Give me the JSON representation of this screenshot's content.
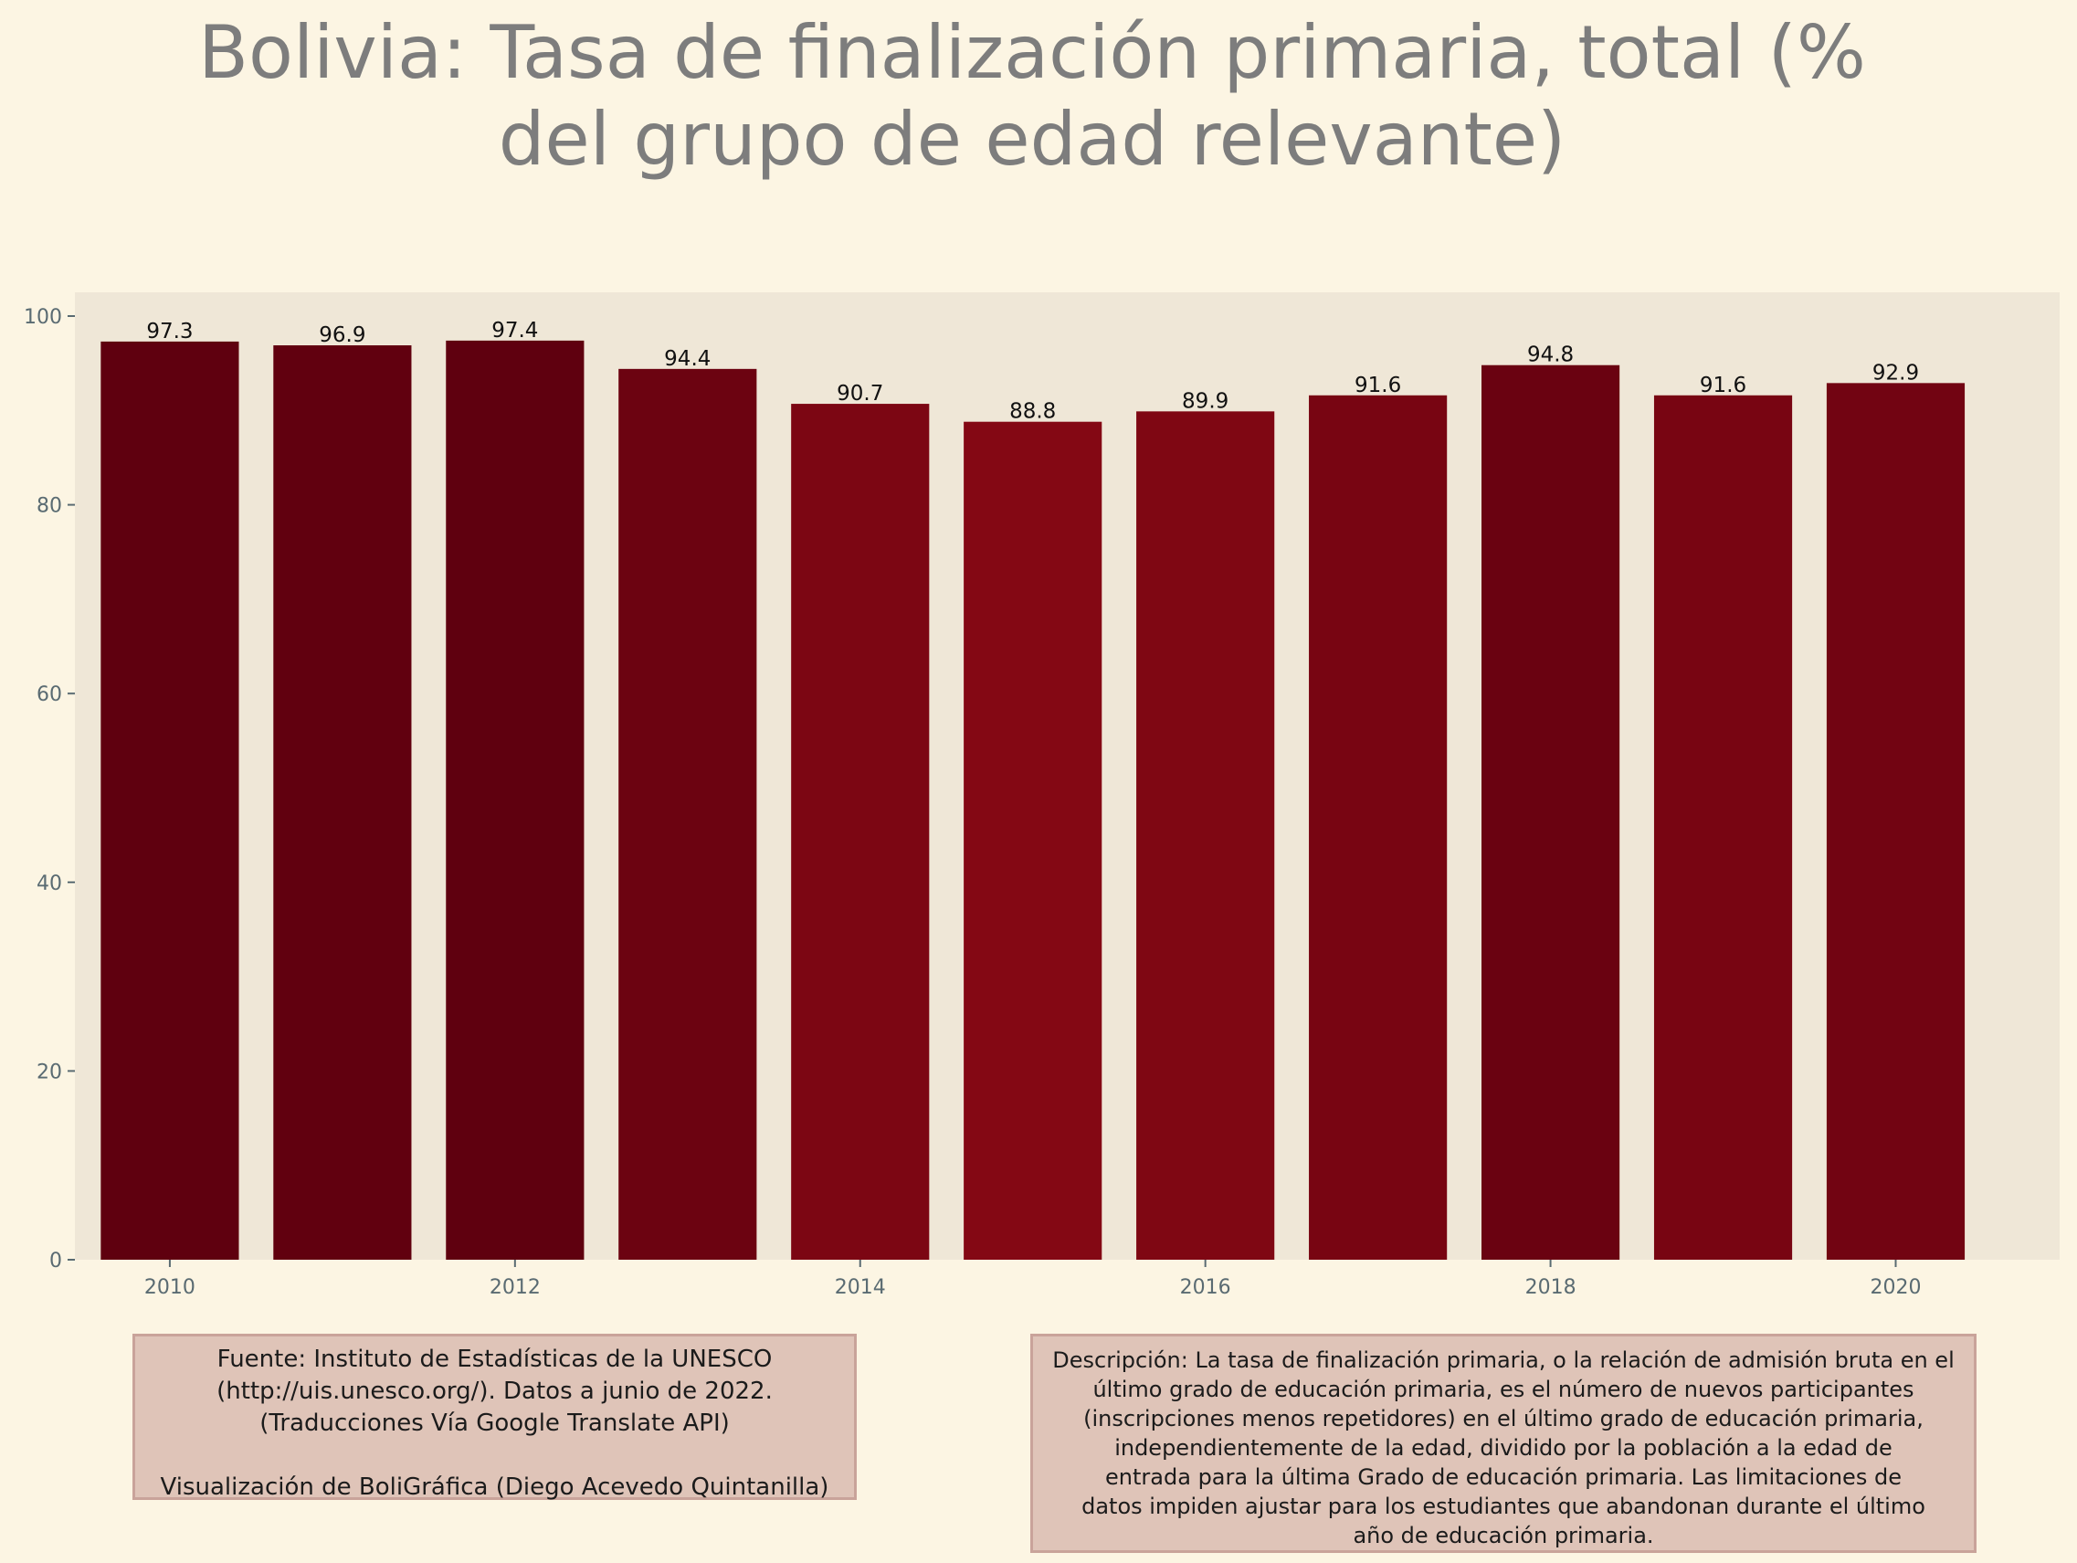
{
  "title": "Bolivia:  Tasa de finalización primaria, total (%\ndel grupo de edad relevante)",
  "source": {
    "lines": [
      "Fuente: Instituto de Estadísticas de la UNESCO",
      "(http://uis.unesco.org/). Datos a junio de 2022.",
      "(Traducciones Vía Google Translate API)"
    ],
    "credit": "Visualización de BoliGráfica (Diego Acevedo Quintanilla)"
  },
  "description": {
    "lines": [
      "Descripción: La tasa de finalización primaria, o la relación de admisión bruta en el",
      "último grado de educación primaria, es el número de nuevos participantes",
      "(inscripciones menos repetidores) en el último grado de educación primaria,",
      "independientemente de la edad, dividido por la población a la edad de",
      "entrada para la última Grado de educación primaria. Las limitaciones de",
      "datos impiden ajustar para los estudiantes que abandonan durante el último",
      "año de educación primaria."
    ]
  },
  "colors": {
    "background": "#fcf5e3",
    "plot_background": "#efe7d7",
    "bar_dark": "#5f000f",
    "bar_light": "#840814",
    "tick_text": "#5a6b72",
    "title_text": "#7d7d7d"
  },
  "chart_data": {
    "type": "bar",
    "title": "Bolivia:  Tasa de finalización primaria, total (% del grupo de edad relevante)",
    "x": [
      2010,
      2011,
      2012,
      2013,
      2014,
      2015,
      2016,
      2017,
      2018,
      2019,
      2020
    ],
    "values": [
      97.3,
      96.9,
      97.4,
      94.4,
      90.7,
      88.8,
      89.9,
      91.6,
      94.8,
      91.6,
      92.9
    ],
    "value_labels": [
      "97.3",
      "96.9",
      "97.4",
      "94.4",
      "90.7",
      "88.8",
      "89.9",
      "91.6",
      "94.8",
      "91.6",
      "92.9"
    ],
    "xticks": [
      "2010",
      "2012",
      "2014",
      "2016",
      "2018",
      "2020"
    ],
    "yticks": [
      "0",
      "20",
      "40",
      "60",
      "80",
      "100"
    ],
    "ylim": [
      0,
      102.3
    ],
    "xlabel": "",
    "ylabel": "",
    "grid": false,
    "legend": "none"
  }
}
